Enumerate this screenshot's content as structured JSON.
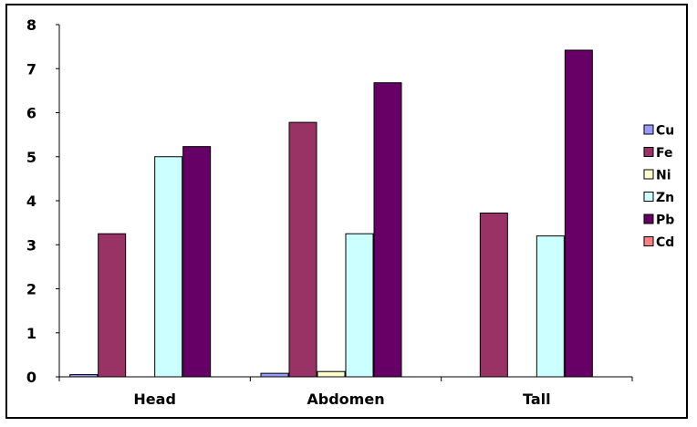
{
  "chart_data": {
    "type": "bar",
    "title": "",
    "xlabel": "",
    "ylabel": "",
    "ylim": [
      0,
      8
    ],
    "yticks": [
      "0",
      "1",
      "2",
      "3",
      "4",
      "5",
      "6",
      "7",
      "8"
    ],
    "categories": [
      "Head",
      "Abdomen",
      "Tall"
    ],
    "grid": false,
    "legend_position": "right",
    "series": [
      {
        "name": "Cu",
        "color": "#9999ff",
        "values": [
          0.05,
          0.08,
          0
        ]
      },
      {
        "name": "Fe",
        "color": "#993366",
        "values": [
          3.25,
          5.78,
          3.72
        ]
      },
      {
        "name": "Ni",
        "color": "#ffffcc",
        "values": [
          0,
          0.12,
          0
        ]
      },
      {
        "name": "Zn",
        "color": "#ccffff",
        "values": [
          5.0,
          3.25,
          3.2
        ]
      },
      {
        "name": "Pb",
        "color": "#660066",
        "values": [
          5.23,
          6.68,
          7.42
        ]
      },
      {
        "name": "Cd",
        "color": "#ff8080",
        "values": [
          0,
          0,
          0
        ]
      }
    ]
  }
}
